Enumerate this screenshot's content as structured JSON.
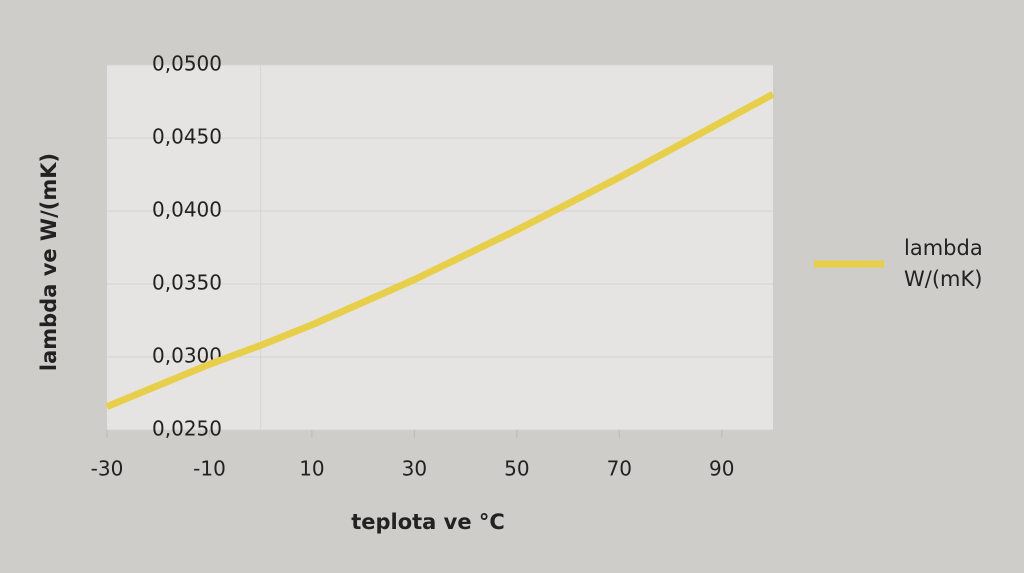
{
  "chart_data": {
    "type": "line",
    "x_label": "teplota ve °C",
    "y_label": "lambda ve W/(mK)",
    "x": [
      -30,
      -10,
      0,
      10,
      30,
      50,
      70,
      90,
      100
    ],
    "series": [
      {
        "name": "lambda W/(mK)",
        "color": "#e8cf4a",
        "values": [
          0.0266,
          0.0295,
          0.0308,
          0.0322,
          0.0353,
          0.0387,
          0.0423,
          0.0461,
          0.048
        ]
      }
    ],
    "xlim": [
      -30,
      100
    ],
    "xticks": [
      -30,
      -10,
      10,
      30,
      50,
      70,
      90
    ],
    "ylim": [
      0.025,
      0.05
    ],
    "yticks": [
      {
        "value": 0.025,
        "label": "0,0250"
      },
      {
        "value": 0.03,
        "label": "0,0300"
      },
      {
        "value": 0.035,
        "label": "0,0350"
      },
      {
        "value": 0.04,
        "label": "0,0400"
      },
      {
        "value": 0.045,
        "label": "0,0450"
      },
      {
        "value": 0.05,
        "label": "0,0500"
      }
    ],
    "grid": true
  }
}
